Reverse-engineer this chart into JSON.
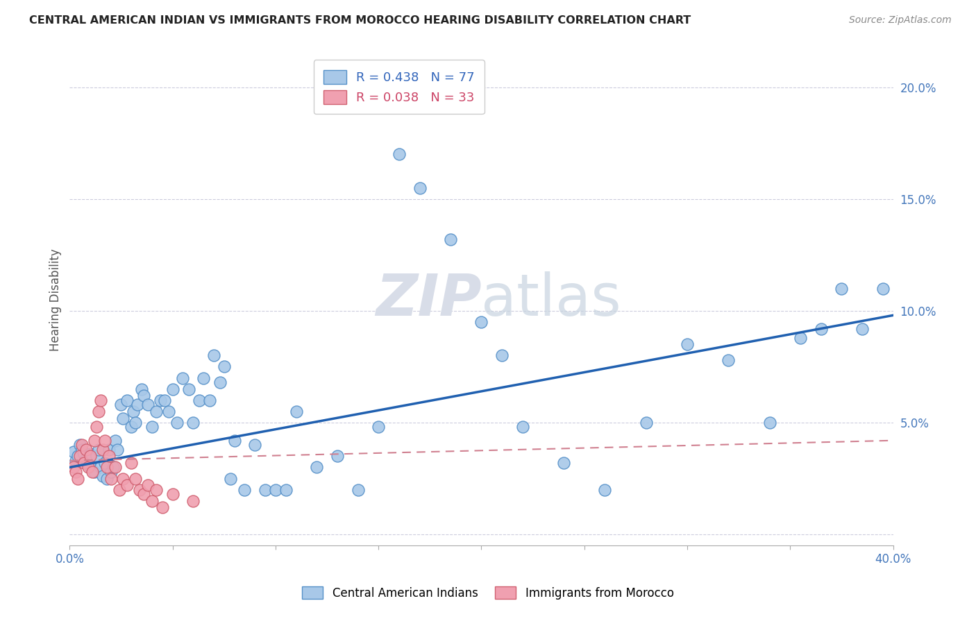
{
  "title": "CENTRAL AMERICAN INDIAN VS IMMIGRANTS FROM MOROCCO HEARING DISABILITY CORRELATION CHART",
  "source": "Source: ZipAtlas.com",
  "ylabel": "Hearing Disability",
  "xlim": [
    0.0,
    0.4
  ],
  "ylim": [
    -0.005,
    0.215
  ],
  "legend_r1": "R = 0.438",
  "legend_n1": "N = 77",
  "legend_r2": "R = 0.038",
  "legend_n2": "N = 33",
  "blue_color": "#a8c8e8",
  "blue_edge": "#5590c8",
  "pink_color": "#f0a0b0",
  "pink_edge": "#d06070",
  "line_blue": "#2060b0",
  "line_pink": "#d08090",
  "watermark_color": "#d8dde8",
  "blue_scatter_x": [
    0.002,
    0.003,
    0.004,
    0.005,
    0.006,
    0.007,
    0.008,
    0.009,
    0.01,
    0.01,
    0.012,
    0.013,
    0.014,
    0.015,
    0.016,
    0.017,
    0.018,
    0.019,
    0.02,
    0.021,
    0.022,
    0.023,
    0.025,
    0.026,
    0.028,
    0.03,
    0.031,
    0.032,
    0.033,
    0.035,
    0.036,
    0.038,
    0.04,
    0.042,
    0.044,
    0.046,
    0.048,
    0.05,
    0.052,
    0.055,
    0.058,
    0.06,
    0.063,
    0.065,
    0.068,
    0.07,
    0.073,
    0.075,
    0.078,
    0.08,
    0.085,
    0.09,
    0.095,
    0.1,
    0.105,
    0.11,
    0.12,
    0.13,
    0.14,
    0.15,
    0.16,
    0.17,
    0.185,
    0.2,
    0.21,
    0.22,
    0.24,
    0.26,
    0.28,
    0.3,
    0.32,
    0.34,
    0.355,
    0.365,
    0.375,
    0.385,
    0.395
  ],
  "blue_scatter_y": [
    0.037,
    0.033,
    0.035,
    0.04,
    0.038,
    0.036,
    0.034,
    0.032,
    0.03,
    0.036,
    0.028,
    0.035,
    0.038,
    0.03,
    0.026,
    0.032,
    0.025,
    0.038,
    0.028,
    0.03,
    0.042,
    0.038,
    0.058,
    0.052,
    0.06,
    0.048,
    0.055,
    0.05,
    0.058,
    0.065,
    0.062,
    0.058,
    0.048,
    0.055,
    0.06,
    0.06,
    0.055,
    0.065,
    0.05,
    0.07,
    0.065,
    0.05,
    0.06,
    0.07,
    0.06,
    0.08,
    0.068,
    0.075,
    0.025,
    0.042,
    0.02,
    0.04,
    0.02,
    0.02,
    0.02,
    0.055,
    0.03,
    0.035,
    0.02,
    0.048,
    0.17,
    0.155,
    0.132,
    0.095,
    0.08,
    0.048,
    0.032,
    0.02,
    0.05,
    0.085,
    0.078,
    0.05,
    0.088,
    0.092,
    0.11,
    0.092,
    0.11
  ],
  "pink_scatter_x": [
    0.002,
    0.003,
    0.004,
    0.005,
    0.006,
    0.007,
    0.008,
    0.009,
    0.01,
    0.011,
    0.012,
    0.013,
    0.014,
    0.015,
    0.016,
    0.017,
    0.018,
    0.019,
    0.02,
    0.022,
    0.024,
    0.026,
    0.028,
    0.03,
    0.032,
    0.034,
    0.036,
    0.038,
    0.04,
    0.042,
    0.045,
    0.05,
    0.06
  ],
  "pink_scatter_y": [
    0.03,
    0.028,
    0.025,
    0.035,
    0.04,
    0.032,
    0.038,
    0.03,
    0.035,
    0.028,
    0.042,
    0.048,
    0.055,
    0.06,
    0.038,
    0.042,
    0.03,
    0.035,
    0.025,
    0.03,
    0.02,
    0.025,
    0.022,
    0.032,
    0.025,
    0.02,
    0.018,
    0.022,
    0.015,
    0.02,
    0.012,
    0.018,
    0.015
  ],
  "blue_line_x0": 0.0,
  "blue_line_x1": 0.4,
  "blue_line_y0": 0.03,
  "blue_line_y1": 0.098,
  "pink_line_x0": 0.0,
  "pink_line_x1": 0.4,
  "pink_line_y0": 0.033,
  "pink_line_y1": 0.042
}
